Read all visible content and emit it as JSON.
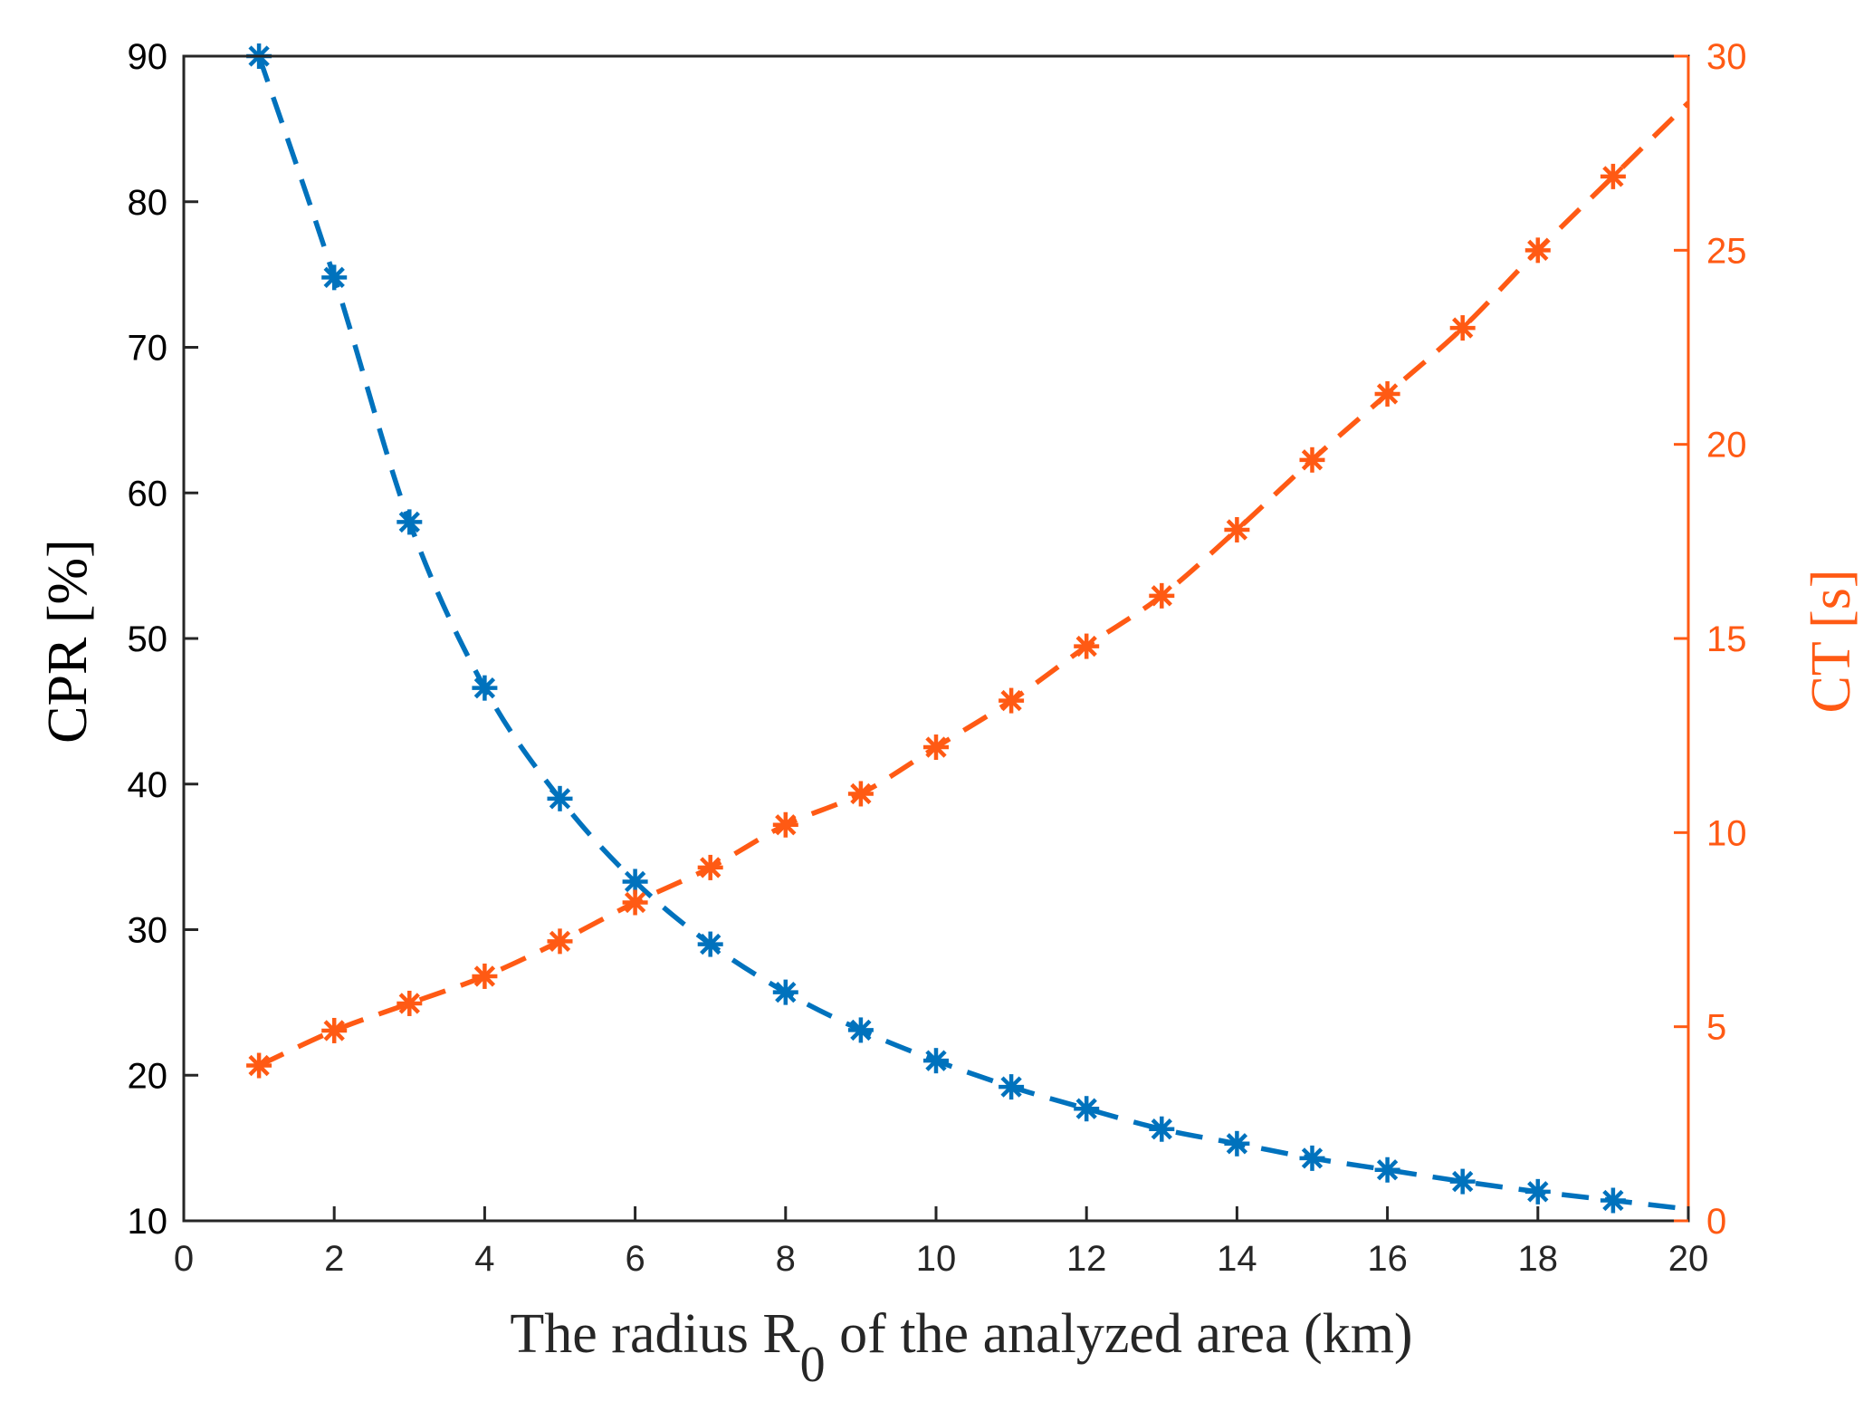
{
  "chart_data": {
    "type": "line",
    "title": "",
    "xlabel": {
      "prefix": "The radius R",
      "subscript": "0",
      "suffix": " of the analyzed area (km)"
    },
    "xlim": [
      0,
      20
    ],
    "xticks": [
      0,
      2,
      4,
      6,
      8,
      10,
      12,
      14,
      16,
      18,
      20
    ],
    "grid": false,
    "left_axis": {
      "label": "CPR [%]",
      "ylim": [
        10,
        90
      ],
      "ticks": [
        10,
        20,
        30,
        40,
        50,
        60,
        70,
        80,
        90
      ],
      "color": "#000000"
    },
    "right_axis": {
      "label": "CT [s]",
      "ylim": [
        0,
        30
      ],
      "ticks": [
        0,
        5,
        10,
        15,
        20,
        25,
        30
      ],
      "color": "#FF5A14"
    },
    "series": [
      {
        "name": "CPR",
        "axis": "left",
        "color": "#0072BD",
        "marker": "asterisk",
        "line_style": "dashed",
        "x": [
          1,
          2,
          3,
          4,
          5,
          6,
          7,
          8,
          9,
          10,
          11,
          12,
          13,
          14,
          15,
          16,
          17,
          18,
          19
        ],
        "values": [
          90,
          74.8,
          58,
          46.6,
          39,
          33.3,
          29,
          25.7,
          23.1,
          21,
          19.2,
          17.7,
          16.3,
          15.3,
          14.3,
          13.5,
          12.7,
          12,
          11.4
        ],
        "line_end": {
          "x": 20,
          "y": 10.8
        }
      },
      {
        "name": "CT",
        "axis": "right",
        "color": "#FF5A14",
        "marker": "asterisk",
        "line_style": "dashed",
        "x": [
          1,
          2,
          3,
          4,
          5,
          6,
          7,
          8,
          9,
          10,
          11,
          12,
          13,
          14,
          15,
          16,
          17,
          18,
          19
        ],
        "values": [
          4.0,
          4.9,
          5.6,
          6.3,
          7.2,
          8.2,
          9.1,
          10.2,
          11.0,
          12.2,
          13.4,
          14.8,
          16.1,
          17.8,
          19.6,
          21.3,
          23.0,
          25.0,
          26.9
        ],
        "line_end": {
          "x": 20,
          "y": 28.8
        }
      }
    ]
  }
}
